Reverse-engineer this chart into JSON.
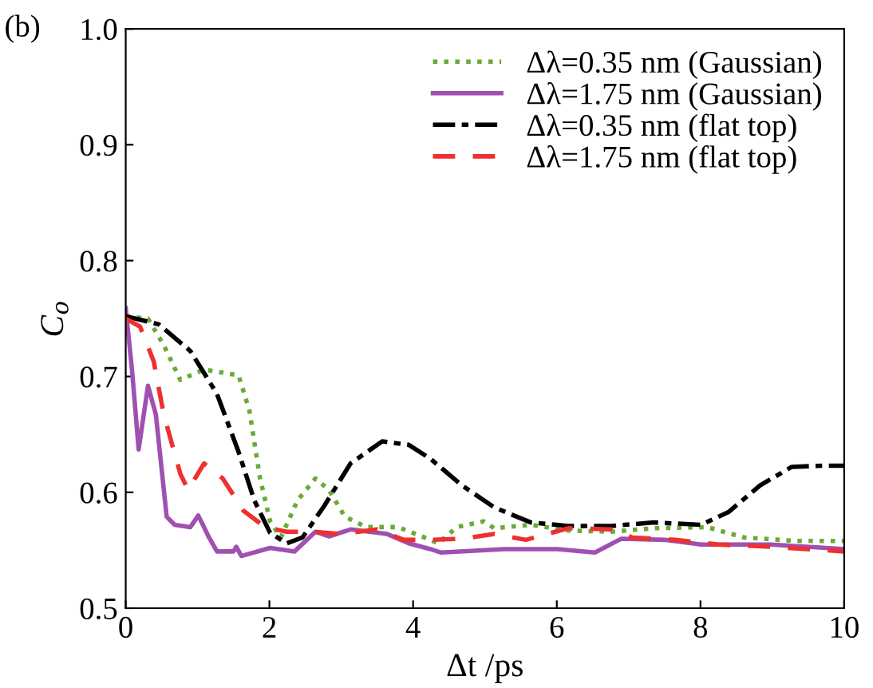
{
  "chart_data": {
    "type": "line",
    "xlabel": "Δt /ps",
    "ylabel": "C$_{o}$",
    "annotations": [
      "(b)"
    ],
    "xlim": [
      0,
      10
    ],
    "ylim": [
      0.5,
      1.0
    ],
    "xticks": [
      0,
      2,
      4,
      6,
      8,
      10
    ],
    "yticks": [
      0.5,
      0.6,
      0.7,
      0.8,
      0.9,
      {
        "value": 1.0,
        "label": "1.0"
      }
    ],
    "grid": false,
    "legend": "top right",
    "series": [
      {
        "name": "Δλ=0.35 nm (Gaussian)",
        "color": "#6aaa3a",
        "line_style": "dotted",
        "x": [
          0,
          0.31,
          0.53,
          0.76,
          1.09,
          1.57,
          1.72,
          1.87,
          2.01,
          2.16,
          2.39,
          2.64,
          2.83,
          3.05,
          3.35,
          3.79,
          4.16,
          4.35,
          4.61,
          4.98,
          5.13,
          5.64,
          6.16,
          6.76,
          7.35,
          8.09,
          8.61,
          9.35,
          10
        ],
        "values": [
          0.752,
          0.75,
          0.727,
          0.697,
          0.706,
          0.701,
          0.671,
          0.612,
          0.575,
          0.561,
          0.593,
          0.612,
          0.602,
          0.579,
          0.57,
          0.57,
          0.561,
          0.556,
          0.57,
          0.575,
          0.569,
          0.572,
          0.567,
          0.566,
          0.569,
          0.57,
          0.561,
          0.558,
          0.558
        ]
      },
      {
        "name": "Δλ=1.75 nm (Gaussian)",
        "color": "#a050b0",
        "line_style": "solid",
        "x": [
          0,
          0.09,
          0.18,
          0.31,
          0.42,
          0.57,
          0.68,
          0.9,
          1.01,
          1.16,
          1.27,
          1.5,
          1.54,
          1.61,
          2.01,
          2.35,
          2.64,
          2.83,
          3.13,
          3.64,
          3.94,
          4.24,
          4.39,
          5.27,
          6.01,
          6.53,
          6.9,
          7.5,
          8.01,
          8.98,
          10
        ],
        "values": [
          0.759,
          0.704,
          0.637,
          0.692,
          0.667,
          0.579,
          0.572,
          0.57,
          0.58,
          0.561,
          0.549,
          0.549,
          0.553,
          0.545,
          0.552,
          0.549,
          0.566,
          0.562,
          0.568,
          0.564,
          0.556,
          0.551,
          0.548,
          0.551,
          0.551,
          0.548,
          0.56,
          0.559,
          0.555,
          0.555,
          0.551
        ]
      },
      {
        "name": "Δλ=0.35 nm (flat top)",
        "color": "#000000",
        "line_style": "dashdot",
        "x": [
          0,
          0.46,
          0.9,
          1.27,
          1.57,
          1.79,
          2.01,
          2.24,
          2.46,
          2.76,
          3.13,
          3.57,
          3.94,
          4.24,
          4.68,
          5.13,
          5.64,
          6.16,
          6.76,
          7.35,
          8.01,
          8.39,
          8.83,
          9.27,
          9.72,
          10
        ],
        "values": [
          0.752,
          0.745,
          0.722,
          0.685,
          0.635,
          0.593,
          0.565,
          0.556,
          0.561,
          0.588,
          0.625,
          0.644,
          0.641,
          0.629,
          0.606,
          0.587,
          0.574,
          0.571,
          0.571,
          0.574,
          0.572,
          0.583,
          0.606,
          0.622,
          0.623,
          0.623
        ]
      },
      {
        "name": "Δλ=1.75 nm (flat top)",
        "color": "#ee3030",
        "line_style": "dashed",
        "x": [
          0,
          0.2,
          0.39,
          0.53,
          0.76,
          0.87,
          1.09,
          1.35,
          1.64,
          1.94,
          2.24,
          2.61,
          2.98,
          3.5,
          3.87,
          4.24,
          4.68,
          5.13,
          5.57,
          6.16,
          6.76,
          7.05,
          7.64,
          8.24,
          8.98,
          10
        ],
        "values": [
          0.75,
          0.743,
          0.713,
          0.667,
          0.616,
          0.602,
          0.625,
          0.612,
          0.584,
          0.57,
          0.566,
          0.566,
          0.564,
          0.568,
          0.559,
          0.559,
          0.56,
          0.564,
          0.559,
          0.569,
          0.568,
          0.561,
          0.559,
          0.555,
          0.553,
          0.549
        ]
      }
    ]
  }
}
